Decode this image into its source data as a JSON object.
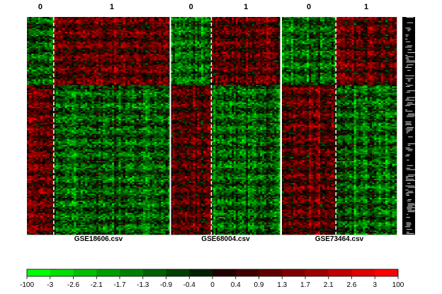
{
  "chart_data": {
    "type": "heatmap",
    "datasets": [
      {
        "name": "GSE18606.csv",
        "groups": [
          {
            "label": "0",
            "columns": 12
          },
          {
            "label": "1",
            "columns": 52
          }
        ]
      },
      {
        "name": "GSE68004.csv",
        "groups": [
          {
            "label": "0",
            "columns": 20
          },
          {
            "label": "1",
            "columns": 34
          }
        ]
      },
      {
        "name": "GSE73464.csv",
        "groups": [
          {
            "label": "0",
            "columns": 24
          },
          {
            "label": "1",
            "columns": 27
          }
        ]
      }
    ],
    "row_blocks": [
      {
        "direction": "up_in_group_1",
        "rows": 50
      },
      {
        "direction": "down_in_group_1",
        "rows": 110
      }
    ],
    "color_scale": {
      "low_color": "#00ff00",
      "mid_color": "#000000",
      "high_color": "#ff0000",
      "breaks": [
        "-100",
        "-3",
        "-2.6",
        "-2.1",
        "-1.7",
        "-1.3",
        "-0.9",
        "-0.4",
        "0",
        "0.4",
        "0.9",
        "1.3",
        "1.7",
        "2.1",
        "2.6",
        "3",
        "100"
      ]
    }
  }
}
